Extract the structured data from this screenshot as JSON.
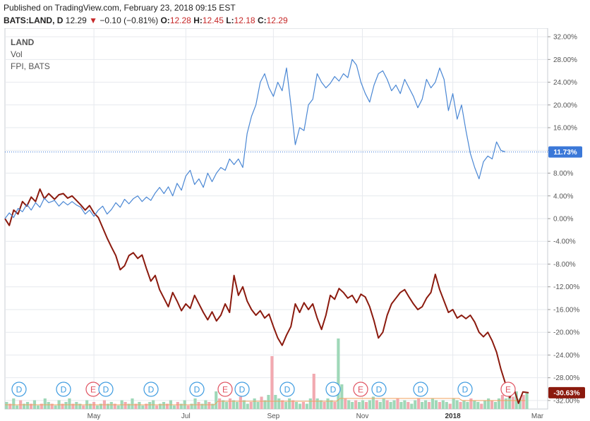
{
  "header": {
    "published": "Published on TradingView.com, February 23, 2018 09:15 EST",
    "symbol": "BATS:LAND, D",
    "last": "12.29",
    "arrow": "▼",
    "change": "−0.10 (−0.81%)",
    "open_label": "O:",
    "open": "12.28",
    "high_label": "H:",
    "high": "12.45",
    "low_label": "L:",
    "low": "12.18",
    "close_label": "C:",
    "close": "12.29"
  },
  "legend": [
    "LAND",
    "Vol",
    "FPI, BATS"
  ],
  "badges": {
    "fpi": "11.73%",
    "land": "-30.63%"
  },
  "colors": {
    "land_line": "#8b1a0e",
    "fpi_line": "#4a87d4",
    "fpi_badge": "#3b78d8",
    "land_badge": "#8b1a0e",
    "vol_up": "#9fd8b8",
    "vol_down": "#f2a9b0",
    "grid": "#e6e9ee",
    "dividend": "#3d9be0",
    "earnings": "#e05260"
  },
  "events": [
    "D",
    "D",
    "E",
    "D",
    "D",
    "D",
    "E",
    "D",
    "D",
    "D",
    "E",
    "D",
    "D",
    "D",
    "E"
  ],
  "chart_data": {
    "type": "line",
    "x_labels": [
      "May",
      "Jul",
      "Sep",
      "Nov",
      "2018",
      "Mar"
    ],
    "y_ticks": [
      "32.00%",
      "28.00%",
      "24.00%",
      "20.00%",
      "16.00%",
      "12.00%",
      "8.00%",
      "4.00%",
      "0.00%",
      "-4.00%",
      "-8.00%",
      "-12.00%",
      "-16.00%",
      "-20.00%",
      "-24.00%",
      "-28.00%",
      "-32.00%"
    ],
    "ylim": [
      -33.5,
      33.5
    ],
    "x_range": [
      "2017-03-01",
      "2018-03-08"
    ],
    "series": [
      {
        "name": "LAND",
        "points": [
          [
            "2017-03-01",
            0.0
          ],
          [
            "2017-03-04",
            -1.2
          ],
          [
            "2017-03-07",
            1.5
          ],
          [
            "2017-03-10",
            0.8
          ],
          [
            "2017-03-13",
            3.0
          ],
          [
            "2017-03-16",
            2.2
          ],
          [
            "2017-03-19",
            3.8
          ],
          [
            "2017-03-22",
            3.0
          ],
          [
            "2017-03-25",
            5.2
          ],
          [
            "2017-03-28",
            3.5
          ],
          [
            "2017-03-31",
            4.4
          ],
          [
            "2017-04-04",
            3.4
          ],
          [
            "2017-04-07",
            4.2
          ],
          [
            "2017-04-10",
            4.4
          ],
          [
            "2017-04-13",
            3.6
          ],
          [
            "2017-04-16",
            4.0
          ],
          [
            "2017-04-19",
            3.2
          ],
          [
            "2017-04-22",
            2.4
          ],
          [
            "2017-04-25",
            1.5
          ],
          [
            "2017-04-28",
            2.3
          ],
          [
            "2017-05-01",
            1.0
          ],
          [
            "2017-05-04",
            0.2
          ],
          [
            "2017-05-07",
            -1.6
          ],
          [
            "2017-05-10",
            -3.4
          ],
          [
            "2017-05-13",
            -5.0
          ],
          [
            "2017-05-16",
            -6.5
          ],
          [
            "2017-05-19",
            -9.0
          ],
          [
            "2017-05-22",
            -8.3
          ],
          [
            "2017-05-25",
            -6.5
          ],
          [
            "2017-05-28",
            -6.0
          ],
          [
            "2017-05-31",
            -7.0
          ],
          [
            "2017-06-03",
            -6.4
          ],
          [
            "2017-06-06",
            -8.8
          ],
          [
            "2017-06-09",
            -11.0
          ],
          [
            "2017-06-12",
            -10.0
          ],
          [
            "2017-06-15",
            -12.5
          ],
          [
            "2017-06-18",
            -14.0
          ],
          [
            "2017-06-21",
            -15.5
          ],
          [
            "2017-06-24",
            -13.0
          ],
          [
            "2017-06-27",
            -14.5
          ],
          [
            "2017-06-30",
            -16.2
          ],
          [
            "2017-07-03",
            -15.0
          ],
          [
            "2017-07-06",
            -15.8
          ],
          [
            "2017-07-09",
            -13.5
          ],
          [
            "2017-07-12",
            -15.0
          ],
          [
            "2017-07-15",
            -16.5
          ],
          [
            "2017-07-18",
            -17.8
          ],
          [
            "2017-07-21",
            -16.4
          ],
          [
            "2017-07-24",
            -18.0
          ],
          [
            "2017-07-27",
            -17.0
          ],
          [
            "2017-07-30",
            -15.0
          ],
          [
            "2017-08-02",
            -16.5
          ],
          [
            "2017-08-05",
            -10.0
          ],
          [
            "2017-08-08",
            -13.5
          ],
          [
            "2017-08-11",
            -12.0
          ],
          [
            "2017-08-14",
            -14.5
          ],
          [
            "2017-08-17",
            -16.0
          ],
          [
            "2017-08-20",
            -17.0
          ],
          [
            "2017-08-23",
            -16.2
          ],
          [
            "2017-08-26",
            -17.5
          ],
          [
            "2017-08-29",
            -16.8
          ],
          [
            "2017-09-01",
            -19.0
          ],
          [
            "2017-09-04",
            -21.0
          ],
          [
            "2017-09-07",
            -22.3
          ],
          [
            "2017-09-10",
            -20.5
          ],
          [
            "2017-09-13",
            -19.0
          ],
          [
            "2017-09-16",
            -15.0
          ],
          [
            "2017-09-19",
            -16.5
          ],
          [
            "2017-09-22",
            -14.8
          ],
          [
            "2017-09-25",
            -16.0
          ],
          [
            "2017-09-28",
            -15.0
          ],
          [
            "2017-10-01",
            -17.5
          ],
          [
            "2017-10-04",
            -19.5
          ],
          [
            "2017-10-07",
            -17.0
          ],
          [
            "2017-10-10",
            -13.5
          ],
          [
            "2017-10-13",
            -14.2
          ],
          [
            "2017-10-16",
            -12.3
          ],
          [
            "2017-10-19",
            -13.0
          ],
          [
            "2017-10-22",
            -14.0
          ],
          [
            "2017-10-25",
            -13.5
          ],
          [
            "2017-10-28",
            -14.8
          ],
          [
            "2017-10-31",
            -13.3
          ],
          [
            "2017-11-03",
            -13.8
          ],
          [
            "2017-11-06",
            -15.5
          ],
          [
            "2017-11-09",
            -18.0
          ],
          [
            "2017-11-12",
            -21.0
          ],
          [
            "2017-11-15",
            -20.0
          ],
          [
            "2017-11-18",
            -17.0
          ],
          [
            "2017-11-21",
            -15.0
          ],
          [
            "2017-11-24",
            -14.0
          ],
          [
            "2017-11-27",
            -13.0
          ],
          [
            "2017-11-30",
            -12.5
          ],
          [
            "2017-12-03",
            -13.8
          ],
          [
            "2017-12-06",
            -15.0
          ],
          [
            "2017-12-09",
            -16.0
          ],
          [
            "2017-12-12",
            -15.5
          ],
          [
            "2017-12-15",
            -14.0
          ],
          [
            "2017-12-18",
            -13.0
          ],
          [
            "2017-12-21",
            -9.8
          ],
          [
            "2017-12-24",
            -12.5
          ],
          [
            "2017-12-27",
            -14.5
          ],
          [
            "2017-12-30",
            -16.5
          ],
          [
            "2018-01-02",
            -16.0
          ],
          [
            "2018-01-05",
            -17.5
          ],
          [
            "2018-01-08",
            -17.0
          ],
          [
            "2018-01-11",
            -17.6
          ],
          [
            "2018-01-14",
            -17.0
          ],
          [
            "2018-01-17",
            -18.2
          ],
          [
            "2018-01-20",
            -20.0
          ],
          [
            "2018-01-23",
            -20.8
          ],
          [
            "2018-01-26",
            -20.0
          ],
          [
            "2018-01-29",
            -21.5
          ],
          [
            "2018-02-01",
            -23.5
          ],
          [
            "2018-02-04",
            -26.5
          ],
          [
            "2018-02-07",
            -29.0
          ],
          [
            "2018-02-10",
            -31.5
          ],
          [
            "2018-02-13",
            -30.0
          ],
          [
            "2018-02-16",
            -32.5
          ],
          [
            "2018-02-19",
            -30.5
          ],
          [
            "2018-02-23",
            -30.63
          ]
        ]
      },
      {
        "name": "FPI, BATS",
        "points": [
          [
            "2017-03-01",
            0.0
          ],
          [
            "2017-03-04",
            1.0
          ],
          [
            "2017-03-07",
            0.2
          ],
          [
            "2017-03-10",
            1.8
          ],
          [
            "2017-03-13",
            1.2
          ],
          [
            "2017-03-16",
            2.5
          ],
          [
            "2017-03-19",
            1.5
          ],
          [
            "2017-03-22",
            2.8
          ],
          [
            "2017-03-25",
            2.0
          ],
          [
            "2017-03-28",
            3.6
          ],
          [
            "2017-03-31",
            2.8
          ],
          [
            "2017-04-04",
            3.2
          ],
          [
            "2017-04-07",
            2.2
          ],
          [
            "2017-04-10",
            3.0
          ],
          [
            "2017-04-13",
            2.4
          ],
          [
            "2017-04-16",
            3.0
          ],
          [
            "2017-04-19",
            2.4
          ],
          [
            "2017-04-22",
            2.0
          ],
          [
            "2017-04-25",
            0.8
          ],
          [
            "2017-04-28",
            1.5
          ],
          [
            "2017-05-01",
            0.4
          ],
          [
            "2017-05-04",
            1.5
          ],
          [
            "2017-05-07",
            2.2
          ],
          [
            "2017-05-10",
            0.8
          ],
          [
            "2017-05-13",
            1.6
          ],
          [
            "2017-05-16",
            2.8
          ],
          [
            "2017-05-19",
            2.0
          ],
          [
            "2017-05-22",
            3.4
          ],
          [
            "2017-05-25",
            2.6
          ],
          [
            "2017-05-28",
            3.5
          ],
          [
            "2017-05-31",
            4.0
          ],
          [
            "2017-06-03",
            3.0
          ],
          [
            "2017-06-06",
            3.8
          ],
          [
            "2017-06-09",
            3.2
          ],
          [
            "2017-06-12",
            4.5
          ],
          [
            "2017-06-15",
            5.5
          ],
          [
            "2017-06-18",
            4.4
          ],
          [
            "2017-06-21",
            5.6
          ],
          [
            "2017-06-24",
            4.0
          ],
          [
            "2017-06-27",
            6.2
          ],
          [
            "2017-06-30",
            5.0
          ],
          [
            "2017-07-03",
            7.5
          ],
          [
            "2017-07-06",
            8.5
          ],
          [
            "2017-07-09",
            6.0
          ],
          [
            "2017-07-12",
            7.0
          ],
          [
            "2017-07-15",
            5.5
          ],
          [
            "2017-07-18",
            8.0
          ],
          [
            "2017-07-21",
            6.5
          ],
          [
            "2017-07-24",
            8.0
          ],
          [
            "2017-07-27",
            9.0
          ],
          [
            "2017-07-30",
            8.5
          ],
          [
            "2017-08-02",
            10.5
          ],
          [
            "2017-08-05",
            9.5
          ],
          [
            "2017-08-08",
            10.5
          ],
          [
            "2017-08-11",
            9.0
          ],
          [
            "2017-08-14",
            15.0
          ],
          [
            "2017-08-17",
            18.0
          ],
          [
            "2017-08-20",
            20.0
          ],
          [
            "2017-08-23",
            24.0
          ],
          [
            "2017-08-26",
            25.5
          ],
          [
            "2017-08-29",
            23.0
          ],
          [
            "2017-09-01",
            21.5
          ],
          [
            "2017-09-04",
            24.0
          ],
          [
            "2017-09-07",
            22.5
          ],
          [
            "2017-09-10",
            26.5
          ],
          [
            "2017-09-13",
            20.0
          ],
          [
            "2017-09-16",
            13.0
          ],
          [
            "2017-09-19",
            16.0
          ],
          [
            "2017-09-22",
            15.5
          ],
          [
            "2017-09-25",
            20.0
          ],
          [
            "2017-09-28",
            21.0
          ],
          [
            "2017-10-01",
            25.5
          ],
          [
            "2017-10-04",
            24.0
          ],
          [
            "2017-10-07",
            23.0
          ],
          [
            "2017-10-10",
            23.8
          ],
          [
            "2017-10-13",
            25.0
          ],
          [
            "2017-10-16",
            24.2
          ],
          [
            "2017-10-19",
            25.5
          ],
          [
            "2017-10-22",
            24.8
          ],
          [
            "2017-10-25",
            28.0
          ],
          [
            "2017-10-28",
            27.0
          ],
          [
            "2017-10-31",
            24.0
          ],
          [
            "2017-11-03",
            22.0
          ],
          [
            "2017-11-06",
            20.5
          ],
          [
            "2017-11-09",
            23.5
          ],
          [
            "2017-11-12",
            25.5
          ],
          [
            "2017-11-15",
            26.0
          ],
          [
            "2017-11-18",
            24.5
          ],
          [
            "2017-11-21",
            22.5
          ],
          [
            "2017-11-24",
            23.5
          ],
          [
            "2017-11-27",
            22.0
          ],
          [
            "2017-11-30",
            24.5
          ],
          [
            "2017-12-03",
            23.0
          ],
          [
            "2017-12-06",
            21.5
          ],
          [
            "2017-12-09",
            19.5
          ],
          [
            "2017-12-12",
            21.0
          ],
          [
            "2017-12-15",
            24.5
          ],
          [
            "2017-12-18",
            23.0
          ],
          [
            "2017-12-21",
            24.0
          ],
          [
            "2017-12-24",
            26.5
          ],
          [
            "2017-12-27",
            24.5
          ],
          [
            "2017-12-30",
            19.0
          ],
          [
            "2018-01-02",
            22.0
          ],
          [
            "2018-01-05",
            17.5
          ],
          [
            "2018-01-08",
            20.0
          ],
          [
            "2018-01-11",
            15.5
          ],
          [
            "2018-01-14",
            11.5
          ],
          [
            "2018-01-17",
            9.0
          ],
          [
            "2018-01-20",
            7.0
          ],
          [
            "2018-01-23",
            10.0
          ],
          [
            "2018-01-26",
            11.0
          ],
          [
            "2018-01-29",
            10.5
          ],
          [
            "2018-02-01",
            13.5
          ],
          [
            "2018-02-04",
            12.0
          ],
          [
            "2018-02-07",
            11.73
          ]
        ]
      }
    ],
    "volume": [
      4,
      3,
      6,
      2,
      5,
      3,
      4,
      3,
      5,
      2,
      3,
      6,
      4,
      3,
      2,
      5,
      3,
      4,
      6,
      3,
      4,
      3,
      2,
      5,
      3,
      4,
      2,
      3,
      5,
      3,
      4,
      3,
      2,
      5,
      4,
      3,
      6,
      3,
      4,
      2,
      3,
      4,
      5,
      2,
      3,
      4,
      3,
      5,
      2,
      4,
      3,
      5,
      2,
      3,
      6,
      4,
      3,
      5,
      4,
      3,
      10,
      6,
      5,
      4,
      6,
      5,
      4,
      7,
      5,
      3,
      4,
      6,
      4,
      7,
      5,
      8,
      30,
      8,
      6,
      5,
      4,
      6,
      5,
      4,
      3,
      4,
      3,
      6,
      20,
      6,
      5,
      4,
      6,
      5,
      4,
      40,
      14,
      6,
      5,
      4,
      5,
      4,
      5,
      4,
      5,
      7,
      5,
      4,
      6,
      5,
      4,
      5,
      6,
      4,
      5,
      4,
      3,
      5,
      6,
      4,
      5,
      4,
      6,
      5,
      4,
      5,
      4,
      3,
      6,
      5,
      4,
      5,
      4,
      6,
      5,
      4,
      3,
      5,
      6,
      5,
      4,
      6,
      8,
      6,
      9,
      7,
      10,
      6,
      8,
      9
    ]
  }
}
